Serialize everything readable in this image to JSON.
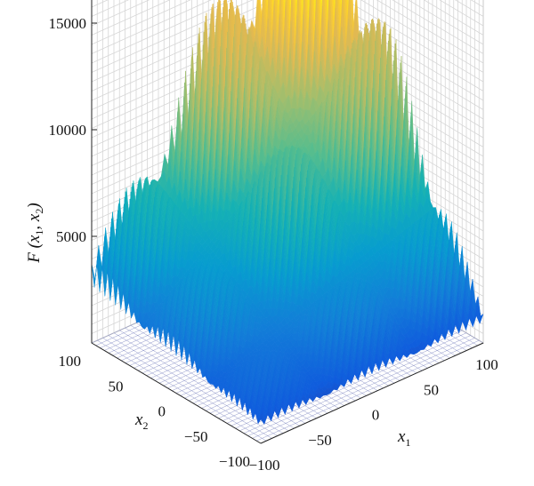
{
  "chart_data": {
    "type": "surface",
    "title": "",
    "zlabel": {
      "main": "F (x",
      "sub1": "1",
      "mid": ", x",
      "sub2": "2",
      "end": ")"
    },
    "xlabel": {
      "main": "x",
      "sub": "1"
    },
    "ylabel": {
      "main": "x",
      "sub": "2"
    },
    "x_ticks": [
      "−100",
      "−50",
      "0",
      "50",
      "100"
    ],
    "y_ticks": [
      "−100",
      "−50",
      "0",
      "50",
      "100"
    ],
    "z_ticks": [
      "5000",
      "10000",
      "15000"
    ],
    "x_range": [
      -100,
      100
    ],
    "y_range": [
      -100,
      100
    ],
    "z_range": [
      0,
      17500
    ],
    "grid": true,
    "colormap": "parula",
    "corner_values": [
      {
        "x1": -100,
        "x2": -100,
        "F": 1000
      },
      {
        "x1": 100,
        "x2": -100,
        "F": 1200
      },
      {
        "x1": -100,
        "x2": 100,
        "F": 3300
      },
      {
        "x1": 100,
        "x2": 100,
        "F": 17500
      }
    ],
    "center_value": {
      "x1": 0,
      "x2": 0,
      "F": 0
    }
  }
}
